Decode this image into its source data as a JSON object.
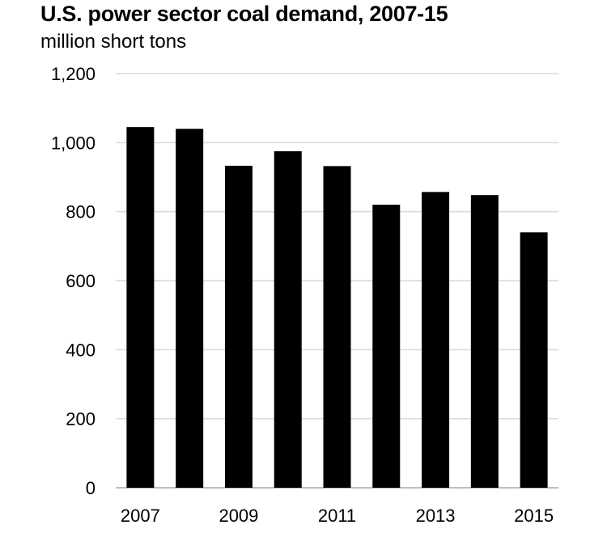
{
  "chart_data": {
    "type": "bar",
    "title": "U.S. power sector coal demand, 2007-15",
    "subtitle": "million short tons",
    "xlabel": "",
    "ylabel": "",
    "categories": [
      "2007",
      "2008",
      "2009",
      "2010",
      "2011",
      "2012",
      "2013",
      "2014",
      "2015"
    ],
    "x_tick_labels": [
      "2007",
      "",
      "2009",
      "",
      "2011",
      "",
      "2013",
      "",
      "2015"
    ],
    "values": [
      1045,
      1040,
      933,
      975,
      932,
      820,
      857,
      848,
      740
    ],
    "ylim": [
      0,
      1200
    ],
    "y_ticks": [
      0,
      200,
      400,
      600,
      800,
      1000,
      1200
    ],
    "y_tick_labels": [
      "0",
      "200",
      "400",
      "600",
      "800",
      "1,000",
      "1,200"
    ],
    "grid": true,
    "legend": "none",
    "bar_color": "#000000",
    "grid_color": "#d9d9d9"
  }
}
